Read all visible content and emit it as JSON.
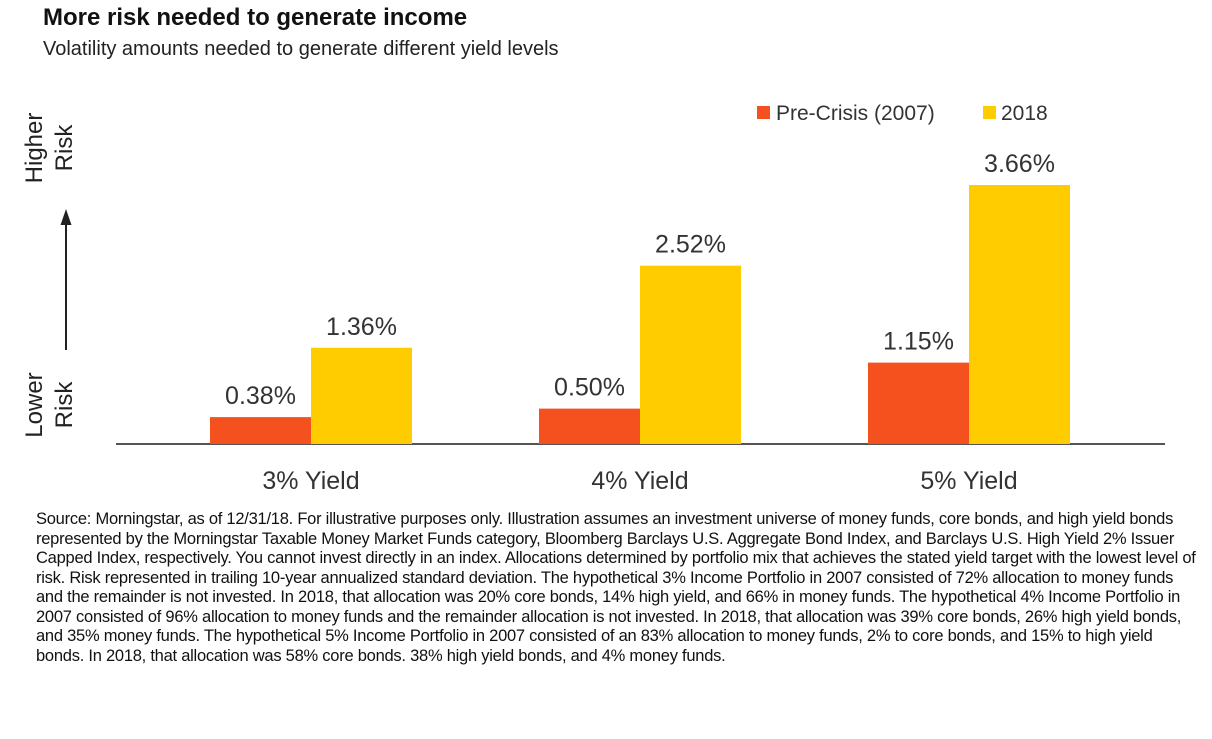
{
  "header": {
    "title": "More risk needed to generate income",
    "subtitle": "Volatility amounts needed to generate different yield levels"
  },
  "chart_data": {
    "type": "bar",
    "categories": [
      "3% Yield",
      "4% Yield",
      "5% Yield"
    ],
    "series": [
      {
        "name": "Pre-Crisis (2007)",
        "values": [
          0.38,
          0.5,
          1.15
        ],
        "labels": [
          "0.38%",
          "0.50%",
          "1.15%"
        ],
        "color": "#F4511E"
      },
      {
        "name": "2018",
        "values": [
          1.36,
          2.52,
          3.66
        ],
        "labels": [
          "1.36%",
          "2.52%",
          "3.66%"
        ],
        "color": "#FFCC00"
      }
    ],
    "ylim": [
      0,
      4
    ],
    "grid": false,
    "legend_position": "top-right",
    "y_axis_text": {
      "high": "Higher Risk",
      "low": "Lower Risk"
    }
  },
  "footer": {
    "source": "Source: Morningstar, as of 12/31/18. For illustrative purposes only. Illustration assumes an investment universe of money funds, core bonds, and high yield bonds represented by the Morningstar Taxable Money Market Funds category, Bloomberg Barclays U.S. Aggregate Bond Index, and Barclays U.S. High Yield 2% Issuer Capped Index, respectively.  You cannot invest directly in an index. Allocations determined by portfolio mix that achieves the stated yield target with the lowest level of risk. Risk represented in trailing 10-year annualized standard deviation. The hypothetical 3% Income Portfolio in 2007 consisted of 72% allocation to money funds and the remainder is not invested. In 2018, that allocation was 20% core bonds, 14% high yield, and 66% in money funds. The hypothetical 4% Income Portfolio in 2007 consisted of 96% allocation to money funds and the remainder allocation is not invested. In 2018, that allocation was 39% core bonds, 26% high yield bonds, and 35% money funds. The hypothetical 5% Income Portfolio in 2007 consisted of an 83% allocation to money funds, 2% to core bonds, and 15% to high yield bonds. In 2018, that allocation was 58% core bonds. 38% high yield bonds, and 4% money funds."
  }
}
